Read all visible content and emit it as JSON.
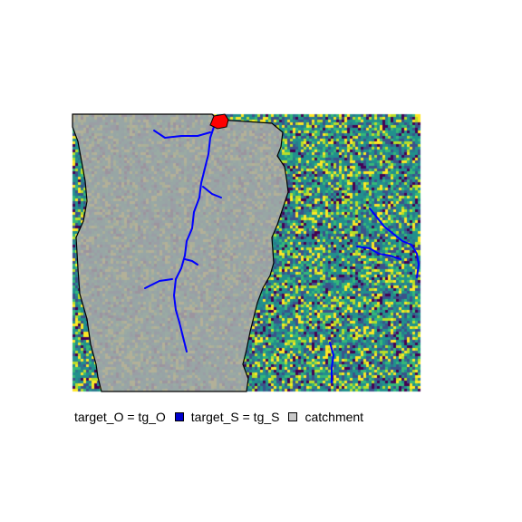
{
  "map": {
    "palette": {
      "raster": [
        "#440154",
        "#3b528b",
        "#21908c",
        "#35b779",
        "#5ec962",
        "#fde725",
        "#b8de29",
        "#2a788e"
      ],
      "catchment_fill": "#a9a9a9",
      "catchment_border": "#000000",
      "river": "#0000ff",
      "outlet": "#ff0000"
    },
    "legend": {
      "items": [
        {
          "label": "target_O = tg_O",
          "color": "#ff0000",
          "swatch": false
        },
        {
          "label": "target_S = tg_S",
          "color": "#0000cd",
          "swatch": true
        },
        {
          "label": "catchment",
          "color": "#c8c8c8",
          "swatch": true
        }
      ]
    }
  }
}
